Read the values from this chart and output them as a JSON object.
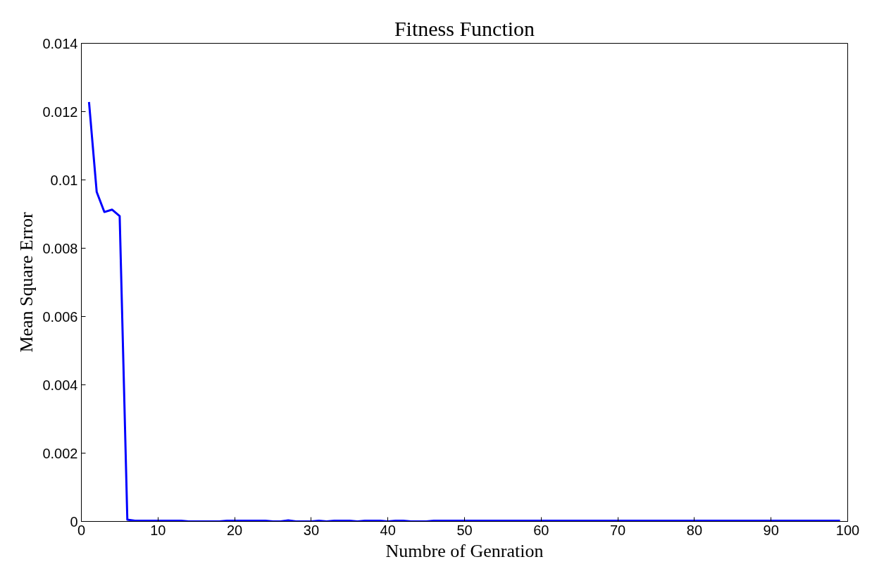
{
  "chart_data": {
    "type": "line",
    "title": "Fitness Function",
    "xlabel": "Numbre of Genration",
    "ylabel": "Mean Square Error",
    "x": [
      1,
      2,
      3,
      4,
      5,
      6,
      7,
      8,
      9,
      10,
      11,
      12,
      13,
      14,
      15,
      16,
      17,
      18,
      19,
      20,
      21,
      22,
      23,
      24,
      25,
      26,
      27,
      28,
      29,
      30,
      31,
      32,
      33,
      34,
      35,
      36,
      37,
      38,
      39,
      40,
      41,
      42,
      43,
      44,
      45,
      46,
      47,
      48,
      49,
      50,
      51,
      52,
      53,
      54,
      55,
      56,
      57,
      58,
      59,
      60,
      61,
      62,
      63,
      64,
      65,
      66,
      67,
      68,
      69,
      70,
      71,
      72,
      73,
      74,
      75,
      76,
      77,
      78,
      79,
      80,
      81,
      82,
      83,
      84,
      85,
      86,
      87,
      88,
      89,
      90,
      91,
      92,
      93,
      94,
      95,
      96,
      97,
      98,
      99
    ],
    "series": [
      {
        "color": "#0000ff",
        "values": [
          0.01228,
          0.00965,
          0.00906,
          0.00913,
          0.00894,
          5e-05,
          2e-05,
          2e-05,
          2e-05,
          2e-05,
          2e-05,
          2e-05,
          2e-05,
          0,
          0,
          0,
          0,
          0,
          2e-05,
          2e-05,
          2e-05,
          2e-05,
          2e-05,
          2e-05,
          0,
          0,
          3e-05,
          0,
          0,
          0,
          2e-05,
          0,
          2e-05,
          2e-05,
          2e-05,
          0,
          2e-05,
          2e-05,
          2e-05,
          0,
          2e-05,
          2e-05,
          0,
          0,
          0,
          2e-05,
          2e-05,
          2e-05,
          2e-05,
          2e-05,
          2e-05,
          2e-05,
          2e-05,
          2e-05,
          2e-05,
          2e-05,
          2e-05,
          2e-05,
          2e-05,
          2e-05,
          2e-05,
          2e-05,
          2e-05,
          2e-05,
          2e-05,
          2e-05,
          2e-05,
          2e-05,
          2e-05,
          2e-05,
          2e-05,
          2e-05,
          2e-05,
          2e-05,
          2e-05,
          2e-05,
          2e-05,
          2e-05,
          2e-05,
          2e-05,
          2e-05,
          2e-05,
          2e-05,
          2e-05,
          2e-05,
          2e-05,
          2e-05,
          2e-05,
          2e-05,
          2e-05,
          2e-05,
          2e-05,
          2e-05,
          2e-05,
          2e-05,
          2e-05,
          2e-05,
          2e-05,
          2e-05
        ]
      }
    ],
    "xlim": [
      0,
      100
    ],
    "xticks": [
      0,
      10,
      20,
      30,
      40,
      50,
      60,
      70,
      80,
      90,
      100
    ],
    "ylim": [
      0,
      0.014
    ],
    "yticks": [
      {
        "value": 0,
        "label": "0"
      },
      0.002,
      0.004,
      0.006,
      0.008,
      {
        "value": 0.01,
        "label": "0.01"
      },
      0.012,
      0.014
    ],
    "grid": false,
    "line_style": "solid"
  }
}
